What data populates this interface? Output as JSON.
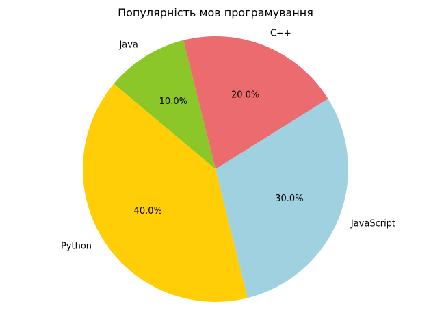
{
  "chart_data": {
    "type": "pie",
    "title": "Популярність мов програмування",
    "categories": [
      "Python",
      "JavaScript",
      "C++",
      "Java"
    ],
    "values": [
      40,
      30,
      20,
      10
    ],
    "percent_labels": [
      "40.0%",
      "30.0%",
      "20.0%",
      "10.0%"
    ],
    "colors": [
      "#ffce07",
      "#a0d1e0",
      "#eb6b6e",
      "#8cc72a"
    ],
    "start_angle_deg": 140,
    "direction": "counterclockwise",
    "legend": "none",
    "grid": false
  }
}
